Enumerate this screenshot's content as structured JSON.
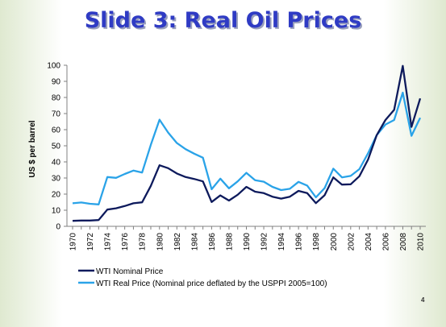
{
  "slide": {
    "title": "Slide 3: Real Oil Prices",
    "page_number": "4"
  },
  "chart_data": {
    "type": "line",
    "title": "",
    "xlabel": "",
    "ylabel": "US $ per barrel",
    "ylim": [
      0,
      100
    ],
    "yticks": [
      0,
      10,
      20,
      30,
      40,
      50,
      60,
      70,
      80,
      90,
      100
    ],
    "xlim": [
      1970,
      2010
    ],
    "xtick_labels": [
      "1970",
      "1972",
      "1974",
      "1976",
      "1978",
      "1980",
      "1982",
      "1984",
      "1986",
      "1988",
      "1990",
      "1992",
      "1994",
      "1996",
      "1998",
      "2000",
      "2002",
      "2004",
      "2006",
      "2008",
      "2010"
    ],
    "grid": false,
    "legend_position": "bottom-left",
    "x": [
      1970,
      1971,
      1972,
      1973,
      1974,
      1975,
      1976,
      1977,
      1978,
      1979,
      1980,
      1981,
      1982,
      1983,
      1984,
      1985,
      1986,
      1987,
      1988,
      1989,
      1990,
      1991,
      1992,
      1993,
      1994,
      1995,
      1996,
      1997,
      1998,
      1999,
      2000,
      2001,
      2002,
      2003,
      2004,
      2005,
      2006,
      2007,
      2008,
      2009,
      2010
    ],
    "series": [
      {
        "name": "WTI Nominal Price",
        "color": "#0d1a5c",
        "values": [
          3.4,
          3.6,
          3.6,
          3.9,
          10.4,
          11.2,
          12.6,
          14.3,
          14.9,
          25.1,
          37.9,
          36.1,
          32.8,
          30.6,
          29.4,
          27.9,
          15.1,
          19.2,
          16.0,
          19.6,
          24.5,
          21.5,
          20.6,
          18.4,
          17.2,
          18.4,
          22.0,
          20.6,
          14.4,
          19.3,
          30.4,
          25.9,
          26.1,
          31.1,
          41.5,
          56.6,
          66.0,
          72.3,
          99.6,
          61.7,
          79.4
        ]
      },
      {
        "name": "WTI Real Price (Nominal price deflated by the USPPI 2005=100)",
        "color": "#2aa3e8",
        "values": [
          14.3,
          14.8,
          14.0,
          13.6,
          30.6,
          30.1,
          32.5,
          34.6,
          33.4,
          50.6,
          66.2,
          58.2,
          51.7,
          47.9,
          45.1,
          42.6,
          23.0,
          29.6,
          23.6,
          27.9,
          33.2,
          28.6,
          27.7,
          24.5,
          22.5,
          23.3,
          27.6,
          25.3,
          18.0,
          23.7,
          35.8,
          30.4,
          31.3,
          35.5,
          45.4,
          56.6,
          63.2,
          66.0,
          83.0,
          56.2,
          67.4
        ]
      }
    ]
  }
}
